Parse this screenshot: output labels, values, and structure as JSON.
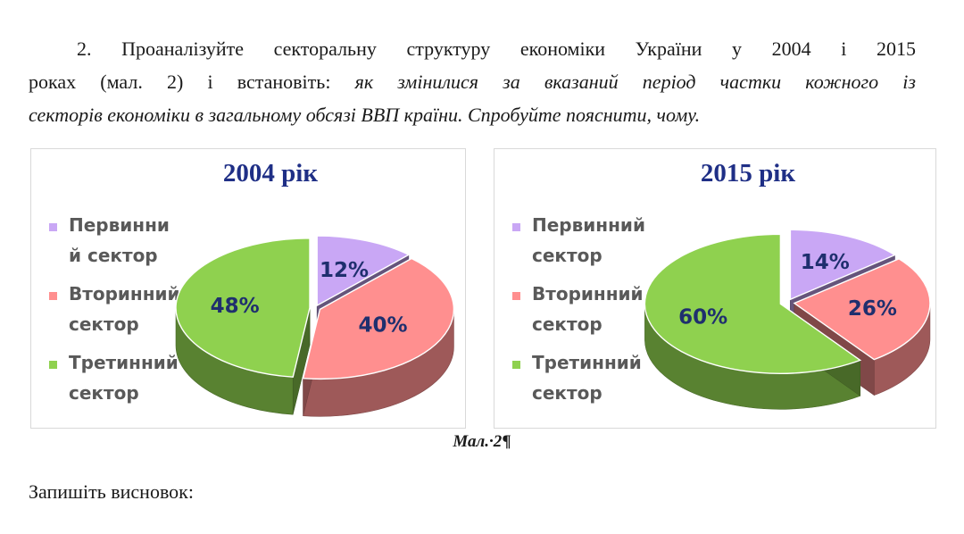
{
  "task": {
    "line1": "2. Проаналізуйте секторальну структуру економіки України у 2004 і 2015",
    "line2_plain": "роках (мал. 2) і встановіть: ",
    "line2_italic": "як змінилися за вказаний період частки кожного із",
    "line3_italic": "секторів економіки в загальному обсязі ВВП країни. Спробуйте пояснити, чому."
  },
  "caption": {
    "text": "Мал.·2",
    "mark": "¶"
  },
  "conclusion": "Запишіть висновок:",
  "colors": {
    "primary": "#c9a7f5",
    "secondary": "#ff8f8f",
    "tertiary": "#8fd14f",
    "title": "#1f2f86"
  },
  "chart_data": [
    {
      "type": "pie",
      "title": "2004 рік",
      "legend_position": "left",
      "series": [
        {
          "name": "Первинни й сектор",
          "legend_lines": [
            "Первинни",
            "й сектор"
          ],
          "value": 12,
          "label": "12%"
        },
        {
          "name": "Вторинний сектор",
          "legend_lines": [
            "Вторинний",
            "сектор"
          ],
          "value": 40,
          "label": "40%"
        },
        {
          "name": "Третинний сектор",
          "legend_lines": [
            "Третинний",
            "сектор"
          ],
          "value": 48,
          "label": "48%"
        }
      ]
    },
    {
      "type": "pie",
      "title": "2015 рік",
      "legend_position": "left",
      "series": [
        {
          "name": "Первинний сектор",
          "legend_lines": [
            "Первинний",
            "сектор"
          ],
          "value": 14,
          "label": "14%"
        },
        {
          "name": "Вторинний сектор",
          "legend_lines": [
            "Вторинний",
            "сектор"
          ],
          "value": 26,
          "label": "26%"
        },
        {
          "name": "Третинний сектор",
          "legend_lines": [
            "Третинний",
            "сектор"
          ],
          "value": 60,
          "label": "60%"
        }
      ]
    }
  ]
}
